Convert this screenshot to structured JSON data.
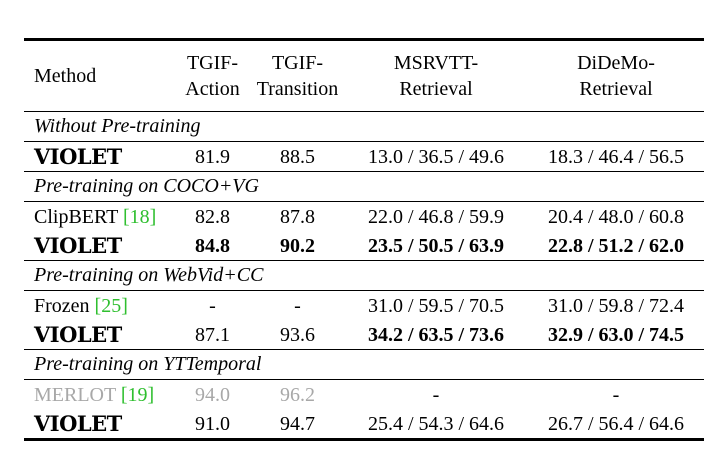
{
  "header": {
    "method": "Method",
    "col1": [
      "TGIF-",
      "Action"
    ],
    "col2": [
      "TGIF-",
      "Transition"
    ],
    "col3": [
      "MSRVTT-",
      "Retrieval"
    ],
    "col4": [
      "DiDeMo-",
      "Retrieval"
    ]
  },
  "sections": [
    {
      "title": "Without Pre-training",
      "rows": [
        {
          "method": "VIOLET",
          "cite": "",
          "tgif_action": "81.9",
          "tgif_transition": "88.5",
          "msrvtt": "13.0 / 36.5 / 49.6",
          "didemo": "18.3 / 46.4 / 56.5"
        }
      ]
    },
    {
      "title": "Pre-training on COCO+VG",
      "rows": [
        {
          "method": "ClipBERT",
          "cite": "[18]",
          "tgif_action": "82.8",
          "tgif_transition": "87.8",
          "msrvtt": "22.0 / 46.8 / 59.9",
          "didemo": "20.4 / 48.0 / 60.8"
        },
        {
          "method": "VIOLET",
          "cite": "",
          "tgif_action": "84.8",
          "tgif_transition": "90.2",
          "msrvtt": "23.5 / 50.5 / 63.9",
          "didemo": "22.8 / 51.2 / 62.0"
        }
      ]
    },
    {
      "title": "Pre-training on WebVid+CC",
      "rows": [
        {
          "method": "Frozen",
          "cite": "[25]",
          "tgif_action": "-",
          "tgif_transition": "-",
          "msrvtt": "31.0 / 59.5 / 70.5",
          "didemo": "31.0 / 59.8 / 72.4"
        },
        {
          "method": "VIOLET",
          "cite": "",
          "tgif_action": "87.1",
          "tgif_transition": "93.6",
          "msrvtt": "34.2 / 63.5 / 73.6",
          "didemo": "32.9 / 63.0 / 74.5"
        }
      ]
    },
    {
      "title": "Pre-training on YTTemporal",
      "rows": [
        {
          "method": "MERLOT",
          "cite": "[19]",
          "tgif_action": "94.0",
          "tgif_transition": "96.2",
          "msrvtt": "-",
          "didemo": "-"
        },
        {
          "method": "VIOLET",
          "cite": "",
          "tgif_action": "91.0",
          "tgif_transition": "94.7",
          "msrvtt": "25.4 / 54.3 / 64.6",
          "didemo": "26.7 / 56.4 / 64.6"
        }
      ]
    }
  ]
}
